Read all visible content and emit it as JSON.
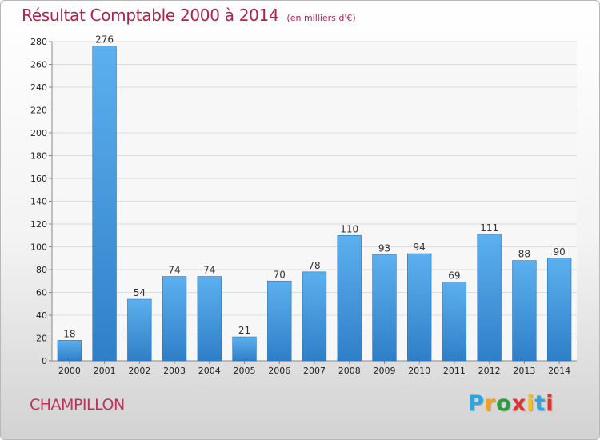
{
  "chart_data": {
    "type": "bar",
    "title": "Résultat Comptable 2000 à 2014",
    "subtitle": "(en milliers d'€)",
    "categories": [
      "2000",
      "2001",
      "2002",
      "2003",
      "2004",
      "2005",
      "2006",
      "2007",
      "2008",
      "2009",
      "2010",
      "2011",
      "2012",
      "2013",
      "2014"
    ],
    "values": [
      18,
      276,
      54,
      74,
      74,
      21,
      70,
      78,
      110,
      93,
      94,
      69,
      111,
      88,
      90
    ],
    "ylim": [
      0,
      280
    ],
    "yticks": [
      0,
      20,
      40,
      60,
      80,
      100,
      120,
      140,
      160,
      180,
      200,
      220,
      240,
      260,
      280
    ],
    "grid": true,
    "bar_color": "#4a9be0"
  },
  "location": "CHAMPILLON",
  "brand": {
    "letters": [
      "P",
      "r",
      "o",
      "x",
      "i",
      "t",
      "i"
    ],
    "colors": [
      "#2aa6e0",
      "#f0a020",
      "#2e9c3c",
      "#e03030",
      "#f0c020",
      "#2aa6e0",
      "#e03030"
    ]
  }
}
